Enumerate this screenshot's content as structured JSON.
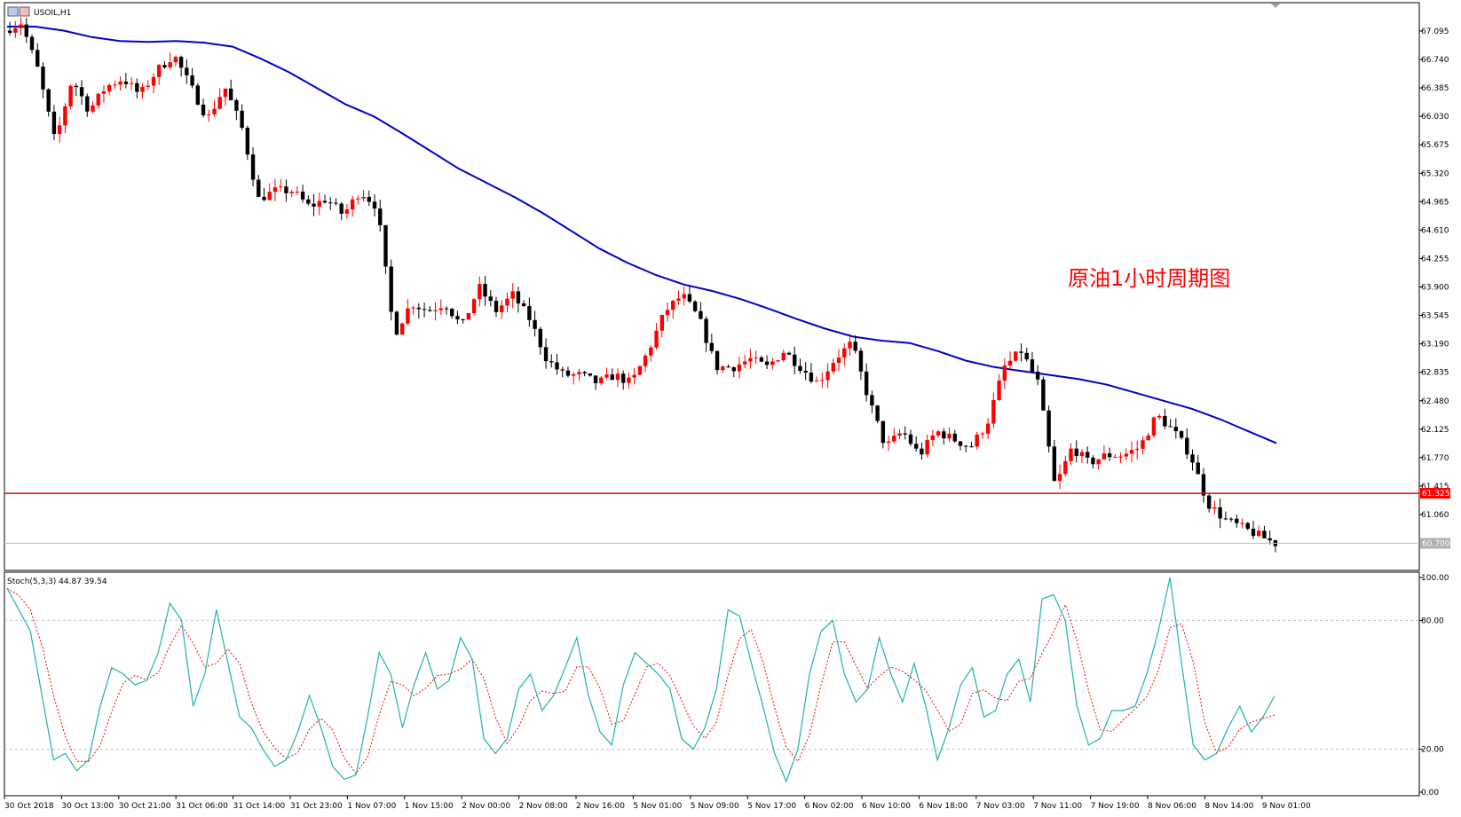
{
  "window": {
    "symbol_title": "USOIL,H1",
    "icon": "chart-window-icon"
  },
  "colors": {
    "bull": "#ff0000",
    "bear": "#000000",
    "ma": "#0000cc",
    "support": "#ff0000",
    "stoch_main": "#20b2aa",
    "stoch_signal": "#ff0000",
    "grid_level": "#c0c0c0"
  },
  "annotation": "原油1小时周期图",
  "stoch": {
    "label": "Stoch(5,3,3) 44.87 39.54",
    "ticks": [
      "100.00",
      "80.00",
      "20.00",
      "0.00"
    ]
  },
  "chart_data": {
    "type": "candlestick",
    "x_labels": [
      "30 Oct 2018",
      "30 Oct 13:00",
      "30 Oct 21:00",
      "31 Oct 06:00",
      "31 Oct 14:00",
      "31 Oct 23:00",
      "1 Nov 07:00",
      "1 Nov 15:00",
      "2 Nov 00:00",
      "2 Nov 08:00",
      "2 Nov 16:00",
      "5 Nov 01:00",
      "5 Nov 09:00",
      "5 Nov 17:00",
      "6 Nov 02:00",
      "6 Nov 10:00",
      "6 Nov 18:00",
      "7 Nov 03:00",
      "7 Nov 11:00",
      "7 Nov 19:00",
      "8 Nov 06:00",
      "8 Nov 14:00",
      "9 Nov 01:00"
    ],
    "y_ticks": [
      "67.095",
      "66.740",
      "66.385",
      "66.030",
      "65.675",
      "65.320",
      "64.965",
      "64.610",
      "64.255",
      "63.900",
      "63.545",
      "63.190",
      "62.835",
      "62.480",
      "62.125",
      "61.770",
      "61.415",
      "61.060"
    ],
    "ylim": [
      60.35,
      67.4
    ],
    "support_level": 61.325,
    "support_label": "61.325",
    "current_price": 60.7,
    "current_label": "60.700",
    "close_path": [
      67.1,
      67.2,
      66.6,
      65.7,
      66.5,
      66.1,
      66.4,
      66.5,
      66.3,
      66.6,
      66.8,
      66.4,
      66.0,
      66.4,
      65.9,
      65.0,
      65.1,
      65.1,
      64.9,
      65.0,
      64.8,
      65.1,
      64.9,
      63.3,
      63.7,
      63.6,
      63.7,
      63.4,
      63.9,
      63.6,
      63.8,
      63.5,
      63.0,
      62.8,
      62.8,
      62.7,
      62.8,
      62.7,
      63.1,
      63.6,
      63.8,
      63.5,
      62.9,
      62.9,
      63.0,
      62.9,
      63.1,
      62.9,
      62.7,
      63.0,
      63.2,
      62.5,
      61.9,
      62.1,
      61.8,
      62.1,
      62.0,
      61.9,
      62.2,
      62.9,
      63.1,
      62.7,
      61.4,
      61.9,
      61.7,
      61.8,
      61.8,
      61.9,
      62.3,
      62.1,
      61.8,
      61.2,
      61.0,
      60.9,
      60.8,
      60.7
    ],
    "ma_path": [
      67.15,
      67.15,
      67.1,
      67.02,
      66.97,
      66.96,
      66.97,
      66.95,
      66.9,
      66.75,
      66.58,
      66.38,
      66.18,
      66.03,
      65.82,
      65.6,
      65.38,
      65.2,
      65.02,
      64.82,
      64.6,
      64.38,
      64.2,
      64.05,
      63.93,
      63.85,
      63.75,
      63.63,
      63.5,
      63.38,
      63.28,
      63.23,
      63.2,
      63.1,
      62.98,
      62.9,
      62.85,
      62.8,
      62.75,
      62.68,
      62.58,
      62.48,
      62.38,
      62.25,
      62.1,
      61.95
    ],
    "stoch_k": [
      95,
      85,
      75,
      45,
      15,
      18,
      10,
      15,
      40,
      58,
      55,
      50,
      52,
      65,
      88,
      80,
      40,
      55,
      85,
      60,
      35,
      30,
      20,
      12,
      15,
      28,
      45,
      30,
      12,
      6,
      8,
      35,
      65,
      55,
      30,
      50,
      65,
      48,
      52,
      72,
      62,
      25,
      18,
      25,
      48,
      55,
      38,
      45,
      58,
      72,
      45,
      28,
      22,
      50,
      65,
      60,
      55,
      48,
      25,
      20,
      30,
      48,
      85,
      82,
      60,
      40,
      18,
      5,
      20,
      55,
      75,
      80,
      55,
      42,
      48,
      72,
      55,
      42,
      60,
      40,
      15,
      30,
      50,
      58,
      35,
      38,
      55,
      62,
      42,
      90,
      92,
      80,
      40,
      22,
      25,
      38,
      38,
      40,
      55,
      75,
      100,
      60,
      22,
      15,
      18,
      30,
      40,
      28,
      35,
      44.87
    ]
  }
}
